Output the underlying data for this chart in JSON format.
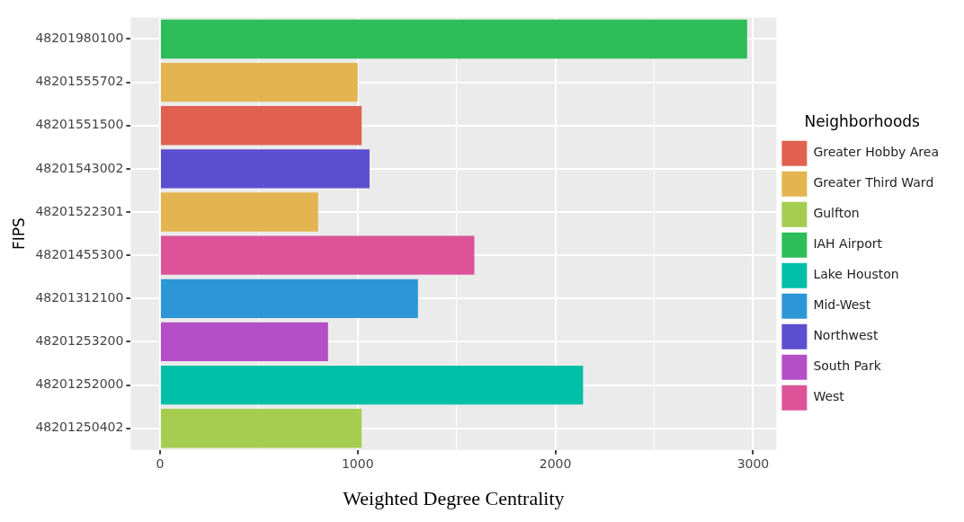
{
  "chart_data": {
    "type": "bar",
    "orientation": "horizontal",
    "xlabel": "Weighted Degree Centrality",
    "ylabel": "FIPS",
    "legend_title": "Neighborhoods",
    "legend": "right",
    "categories": [
      "48201980100",
      "48201555702",
      "48201551500",
      "48201543002",
      "48201522301",
      "48201455300",
      "48201312100",
      "48201253200",
      "48201252000",
      "48201250402"
    ],
    "series": [
      {
        "name": "Greater Hobby Area",
        "color": "#e06150",
        "values": [
          null,
          null,
          1020,
          null,
          null,
          null,
          null,
          null,
          null,
          null
        ]
      },
      {
        "name": "Greater Third Ward",
        "color": "#e4b450",
        "values": [
          null,
          1000,
          null,
          null,
          800,
          null,
          null,
          null,
          null,
          null
        ]
      },
      {
        "name": "Gulfton",
        "color": "#a5cd50",
        "values": [
          null,
          null,
          null,
          null,
          null,
          null,
          null,
          null,
          null,
          1020
        ]
      },
      {
        "name": "IAH Airport",
        "color": "#2ebd59",
        "values": [
          2970,
          null,
          null,
          null,
          null,
          null,
          null,
          null,
          null,
          null
        ]
      },
      {
        "name": "Lake Houston",
        "color": "#00bfa6",
        "values": [
          null,
          null,
          null,
          null,
          null,
          null,
          null,
          null,
          2140,
          null
        ]
      },
      {
        "name": "Mid-West",
        "color": "#2d96d6",
        "values": [
          null,
          null,
          null,
          null,
          null,
          null,
          1305,
          null,
          null,
          null
        ]
      },
      {
        "name": "Northwest",
        "color": "#5c4fcf",
        "values": [
          null,
          null,
          null,
          1060,
          null,
          null,
          null,
          null,
          null,
          null
        ]
      },
      {
        "name": "South Park",
        "color": "#b44fc7",
        "values": [
          null,
          null,
          null,
          null,
          null,
          null,
          null,
          850,
          null,
          null
        ]
      },
      {
        "name": "West",
        "color": "#dc5399",
        "values": [
          null,
          null,
          null,
          null,
          null,
          1590,
          null,
          null,
          null,
          null
        ]
      }
    ],
    "xlim": [
      -148,
      3118
    ],
    "xticks": [
      0,
      {
        "value": 500,
        "label": null
      },
      1000,
      {
        "value": 1500,
        "label": null
      },
      2000,
      {
        "value": 2500,
        "label": null
      },
      3000
    ],
    "grid": true
  }
}
